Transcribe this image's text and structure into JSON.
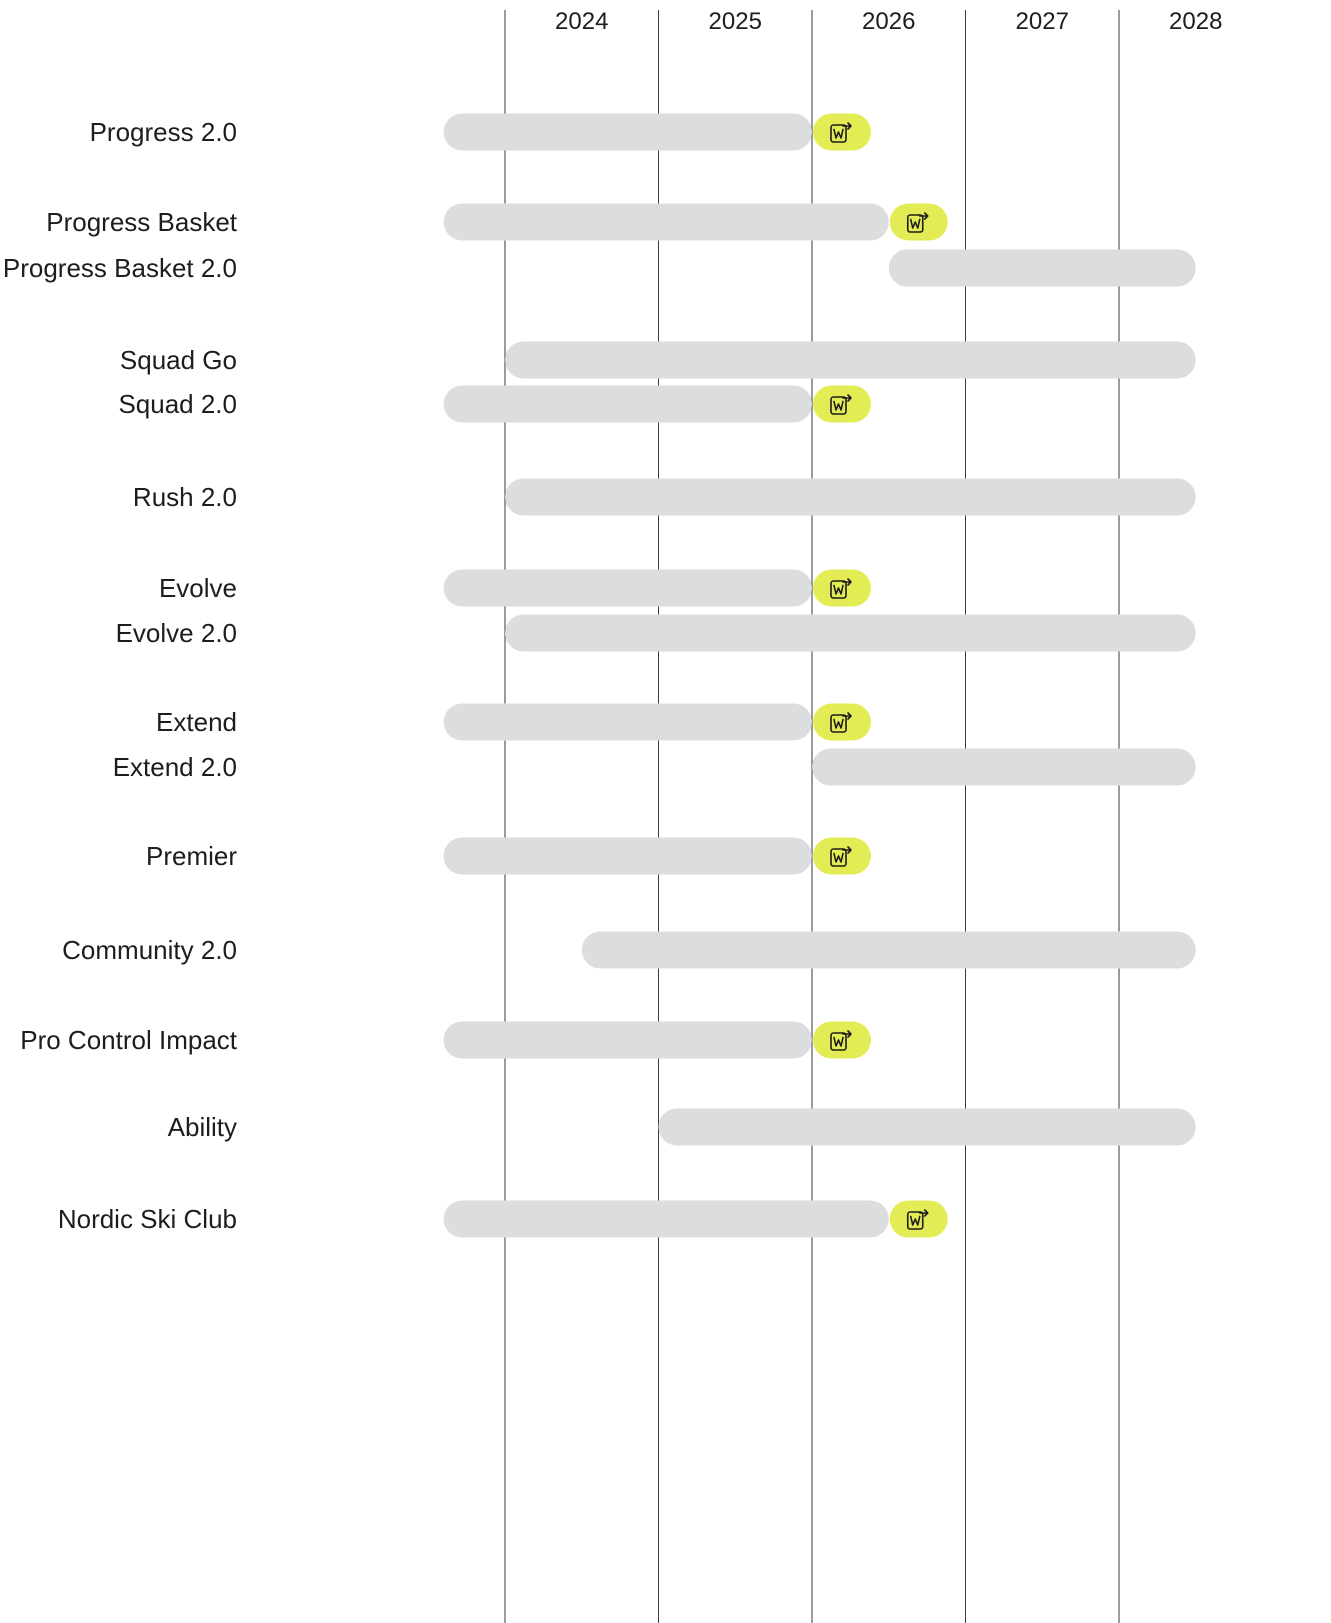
{
  "chart_data": {
    "type": "gantt",
    "x_axis": {
      "ticks": [
        "2024",
        "2025",
        "2026",
        "2027",
        "2028"
      ],
      "range": [
        2023.6,
        2028.5
      ]
    },
    "grid": "vertical-year-lines",
    "colors": {
      "bar": "#dcdddf",
      "badge": "#e4ec55",
      "gridline": "#3a3a3a",
      "text": "#1d1d1f"
    },
    "badge_icon": "document-export-icon",
    "rows": [
      {
        "label": "Progress 2.0",
        "start": 2023.6,
        "end": 2026.0,
        "badge": true
      },
      {
        "label": "Progress Basket",
        "start": 2023.6,
        "end": 2026.5,
        "badge": true
      },
      {
        "label": "Progress Basket 2.0",
        "start": 2026.5,
        "end": 2028.5,
        "badge": false
      },
      {
        "label": "Squad Go",
        "start": 2024.0,
        "end": 2028.5,
        "badge": false
      },
      {
        "label": "Squad 2.0",
        "start": 2023.6,
        "end": 2026.0,
        "badge": true
      },
      {
        "label": "Rush 2.0",
        "start": 2024.0,
        "end": 2028.5,
        "badge": false
      },
      {
        "label": "Evolve",
        "start": 2023.6,
        "end": 2026.0,
        "badge": true
      },
      {
        "label": "Evolve 2.0",
        "start": 2024.0,
        "end": 2028.5,
        "badge": false
      },
      {
        "label": "Extend",
        "start": 2023.6,
        "end": 2026.0,
        "badge": true
      },
      {
        "label": "Extend 2.0",
        "start": 2026.0,
        "end": 2028.5,
        "badge": false
      },
      {
        "label": "Premier",
        "start": 2023.6,
        "end": 2026.0,
        "badge": true
      },
      {
        "label": "Community 2.0",
        "start": 2024.5,
        "end": 2028.5,
        "badge": false
      },
      {
        "label": "Pro Control Impact",
        "start": 2023.6,
        "end": 2026.0,
        "badge": true
      },
      {
        "label": "Ability",
        "start": 2025.0,
        "end": 2028.5,
        "badge": false
      },
      {
        "label": "Nordic Ski Club",
        "start": 2023.6,
        "end": 2026.5,
        "badge": true
      }
    ]
  }
}
